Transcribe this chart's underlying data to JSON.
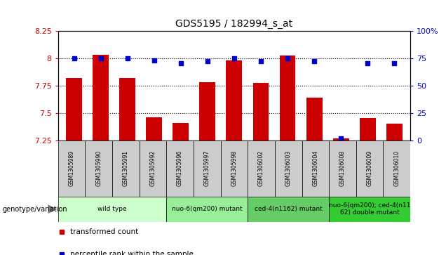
{
  "title": "GDS5195 / 182994_s_at",
  "samples": [
    "GSM1305989",
    "GSM1305990",
    "GSM1305991",
    "GSM1305992",
    "GSM1305996",
    "GSM1305997",
    "GSM1305998",
    "GSM1306002",
    "GSM1306003",
    "GSM1306004",
    "GSM1306008",
    "GSM1306009",
    "GSM1306010"
  ],
  "transformed_count": [
    7.82,
    8.03,
    7.82,
    7.46,
    7.41,
    7.78,
    7.98,
    7.77,
    8.02,
    7.64,
    7.27,
    7.45,
    7.4
  ],
  "percentile_values": [
    75,
    75,
    75,
    73,
    70,
    72,
    75,
    72,
    75,
    72,
    2,
    70,
    70
  ],
  "ylim_left": [
    7.25,
    8.25
  ],
  "ylim_right": [
    0,
    100
  ],
  "yticks_left": [
    7.25,
    7.5,
    7.75,
    8.0,
    8.25
  ],
  "ytick_labels_left": [
    "7.25",
    "7.5",
    "7.75",
    "8",
    "8.25"
  ],
  "yticks_right": [
    0,
    25,
    50,
    75,
    100
  ],
  "ytick_labels_right": [
    "0",
    "25",
    "50",
    "75",
    "100%"
  ],
  "bar_color": "#cc0000",
  "dot_color": "#0000cc",
  "grid_yticks": [
    7.5,
    7.75,
    8.0
  ],
  "group_configs": [
    {
      "indices": [
        0,
        1,
        2,
        3
      ],
      "label": "wild type",
      "color": "#ccffcc"
    },
    {
      "indices": [
        4,
        5,
        6
      ],
      "label": "nuo-6(qm200) mutant",
      "color": "#99ee99"
    },
    {
      "indices": [
        7,
        8,
        9
      ],
      "label": "ced-4(n1162) mutant",
      "color": "#66cc66"
    },
    {
      "indices": [
        10,
        11,
        12
      ],
      "label": "nuo-6(qm200); ced-4(n11\n62) double mutant",
      "color": "#33cc33"
    }
  ],
  "sample_box_color": "#cccccc",
  "legend_items": [
    {
      "label": "transformed count",
      "color": "#cc0000"
    },
    {
      "label": "percentile rank within the sample",
      "color": "#0000cc"
    }
  ],
  "geno_label": "genotype/variation"
}
